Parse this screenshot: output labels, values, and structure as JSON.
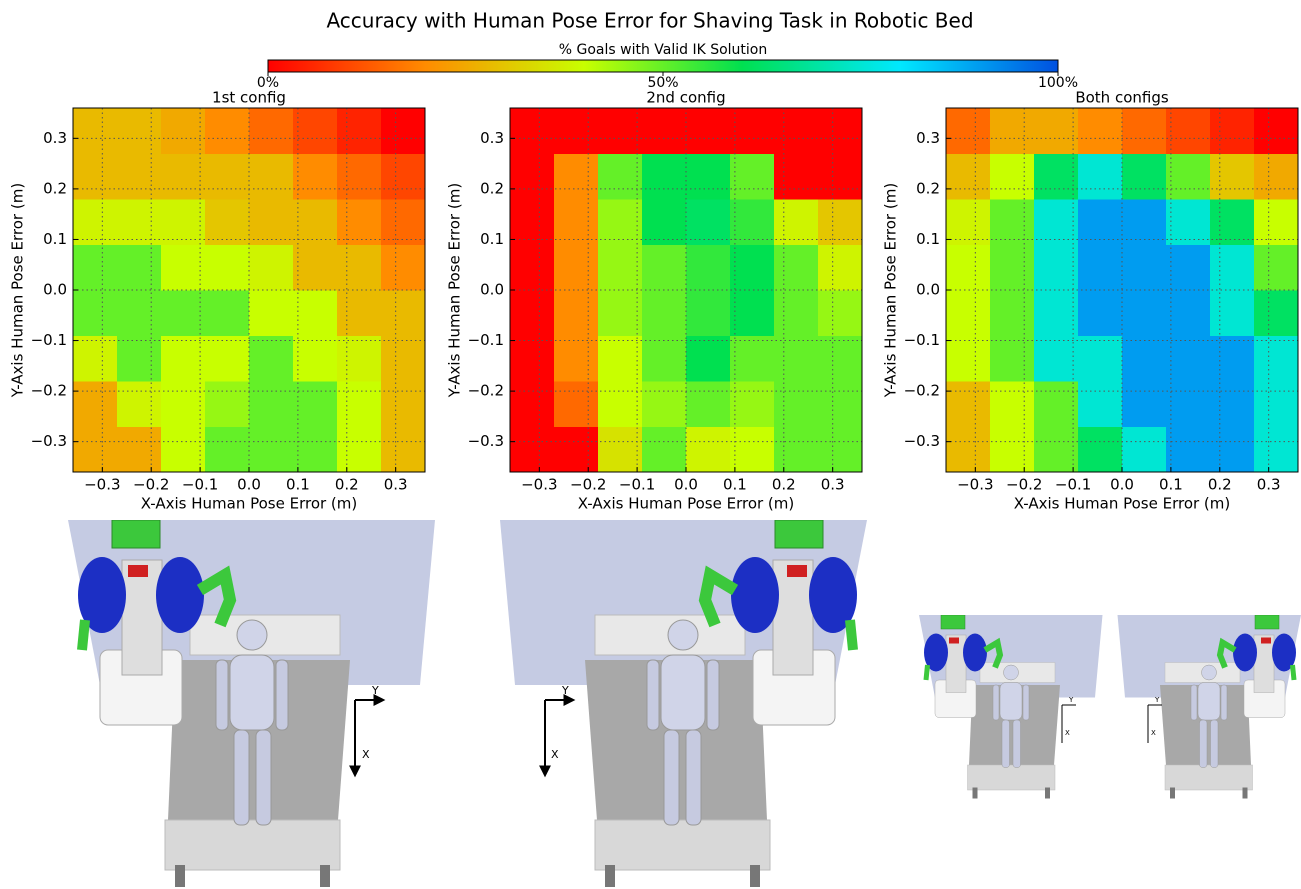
{
  "title": "Accuracy with Human Pose Error for Shaving Task in Robotic Bed",
  "colorbar": {
    "label": "% Goals with Valid IK Solution",
    "lim": [
      0,
      100
    ],
    "ticks": [
      {
        "value": 0,
        "label": "0%"
      },
      {
        "value": 50,
        "label": "50%"
      },
      {
        "value": 100,
        "label": "100%"
      }
    ],
    "colormap": [
      "#ff0000",
      "#ff8c00",
      "#c8ff00",
      "#00e050",
      "#00e8ff",
      "#0050e0"
    ]
  },
  "chart_data": [
    {
      "type": "heatmap",
      "title": "1st config",
      "xlabel": "X-Axis Human Pose Error (m)",
      "ylabel": "Y-Axis Human Pose Error (m)",
      "xbins": [
        -0.36,
        -0.27,
        -0.18,
        -0.09,
        0,
        0.09,
        0.18,
        0.27,
        0.36
      ],
      "ybins": [
        -0.36,
        -0.27,
        -0.18,
        -0.09,
        0,
        0.09,
        0.18,
        0.27,
        0.36
      ],
      "values": [
        [
          25,
          25,
          40,
          50,
          50,
          50,
          40,
          28
        ],
        [
          25,
          38,
          40,
          45,
          50,
          50,
          40,
          28
        ],
        [
          38,
          50,
          40,
          40,
          50,
          40,
          38,
          28
        ],
        [
          50,
          50,
          50,
          50,
          40,
          40,
          28,
          28
        ],
        [
          50,
          50,
          40,
          40,
          38,
          28,
          28,
          20
        ],
        [
          38,
          38,
          38,
          30,
          28,
          28,
          20,
          15
        ],
        [
          28,
          28,
          28,
          28,
          28,
          20,
          15,
          10
        ],
        [
          28,
          28,
          25,
          20,
          15,
          10,
          5,
          0
        ]
      ],
      "xlim": [
        -0.36,
        0.36
      ],
      "ylim": [
        -0.36,
        0.36
      ],
      "xticks": [
        {
          "value": -0.3,
          "label": "−0.3"
        },
        {
          "value": -0.2,
          "label": "−0.2"
        },
        {
          "value": -0.1,
          "label": "−0.1"
        },
        {
          "value": 0,
          "label": "0.0"
        },
        0.1,
        0.2,
        0.3
      ],
      "yticks": [
        {
          "value": -0.3,
          "label": "−0.3"
        },
        {
          "value": -0.2,
          "label": "−0.2"
        },
        {
          "value": -0.1,
          "label": "−0.1"
        },
        {
          "value": 0,
          "label": "0.0"
        },
        0.1,
        0.2,
        0.3
      ],
      "grid": true
    },
    {
      "type": "heatmap",
      "title": "2nd config",
      "xlabel": "X-Axis Human Pose Error (m)",
      "ylabel": "Y-Axis Human Pose Error (m)",
      "xbins": [
        -0.36,
        -0.27,
        -0.18,
        -0.09,
        0,
        0.09,
        0.18,
        0.27,
        0.36
      ],
      "ybins": [
        -0.36,
        -0.27,
        -0.18,
        -0.09,
        0,
        0.09,
        0.18,
        0.27,
        0.36
      ],
      "values": [
        [
          0,
          0,
          35,
          50,
          38,
          40,
          50,
          50
        ],
        [
          0,
          15,
          40,
          45,
          50,
          45,
          50,
          50
        ],
        [
          0,
          20,
          40,
          50,
          60,
          50,
          50,
          50
        ],
        [
          0,
          20,
          45,
          50,
          55,
          60,
          50,
          45
        ],
        [
          0,
          20,
          45,
          50,
          55,
          60,
          50,
          38
        ],
        [
          0,
          20,
          45,
          60,
          62,
          55,
          38,
          30
        ],
        [
          0,
          20,
          50,
          60,
          60,
          50,
          0,
          0
        ],
        [
          0,
          0,
          0,
          0,
          0,
          0,
          0,
          0
        ]
      ],
      "xlim": [
        -0.36,
        0.36
      ],
      "ylim": [
        -0.36,
        0.36
      ],
      "xticks": [
        {
          "value": -0.3,
          "label": "−0.3"
        },
        {
          "value": -0.2,
          "label": "−0.2"
        },
        {
          "value": -0.1,
          "label": "−0.1"
        },
        {
          "value": 0,
          "label": "0.0"
        },
        0.1,
        0.2,
        0.3
      ],
      "yticks": [
        {
          "value": -0.3,
          "label": "−0.3"
        },
        {
          "value": -0.2,
          "label": "−0.2"
        },
        {
          "value": -0.1,
          "label": "−0.1"
        },
        {
          "value": 0,
          "label": "0.0"
        },
        0.1,
        0.2,
        0.3
      ],
      "grid": true
    },
    {
      "type": "heatmap",
      "title": "Both configs",
      "xlabel": "X-Axis Human Pose Error (m)",
      "ylabel": "Y-Axis Human Pose Error (m)",
      "xbins": [
        -0.36,
        -0.27,
        -0.18,
        -0.09,
        0,
        0.09,
        0.18,
        0.27,
        0.36
      ],
      "ybins": [
        -0.36,
        -0.27,
        -0.18,
        -0.09,
        0,
        0.09,
        0.18,
        0.27,
        0.36
      ],
      "values": [
        [
          28,
          40,
          50,
          62,
          75,
          90,
          90,
          75
        ],
        [
          28,
          40,
          50,
          75,
          90,
          90,
          90,
          75
        ],
        [
          40,
          50,
          75,
          75,
          90,
          90,
          90,
          75
        ],
        [
          40,
          50,
          75,
          90,
          90,
          90,
          75,
          62
        ],
        [
          40,
          50,
          75,
          90,
          90,
          90,
          75,
          50
        ],
        [
          38,
          50,
          75,
          90,
          90,
          75,
          62,
          40
        ],
        [
          28,
          40,
          62,
          75,
          62,
          50,
          30,
          25
        ],
        [
          15,
          25,
          25,
          20,
          15,
          10,
          5,
          0
        ]
      ],
      "xlim": [
        -0.36,
        0.36
      ],
      "ylim": [
        -0.36,
        0.36
      ],
      "xticks": [
        {
          "value": -0.3,
          "label": "−0.3"
        },
        {
          "value": -0.2,
          "label": "−0.2"
        },
        {
          "value": -0.1,
          "label": "−0.1"
        },
        {
          "value": 0,
          "label": "0.0"
        },
        0.1,
        0.2,
        0.3
      ],
      "yticks": [
        {
          "value": -0.3,
          "label": "−0.3"
        },
        {
          "value": -0.2,
          "label": "−0.2"
        },
        {
          "value": -0.1,
          "label": "−0.1"
        },
        {
          "value": 0,
          "label": "0.0"
        },
        0.1,
        0.2,
        0.3
      ],
      "grid": true
    }
  ],
  "illustrations": [
    {
      "y_label": "Y",
      "x_label": "X"
    },
    {
      "y_label": "Y",
      "x_label": "X"
    },
    {
      "y_label": "Y",
      "x_label": "X"
    },
    {
      "y_label": "Y",
      "x_label": "X"
    }
  ]
}
